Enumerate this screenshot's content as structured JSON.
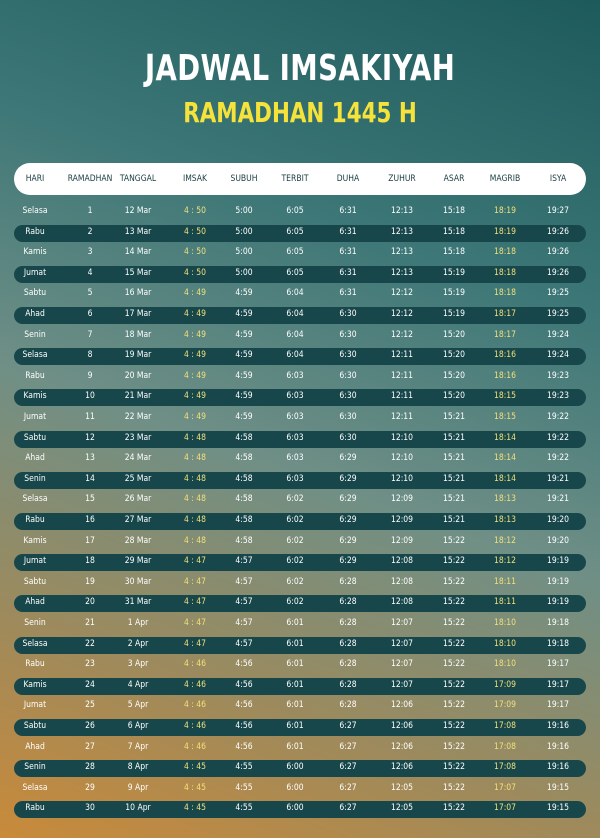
{
  "header": {
    "title": "JADWAL IMSAKIYAH",
    "subtitle": "RAMADHAN 1445 H"
  },
  "table": {
    "headers": [
      "HARI",
      "RAMADHAN",
      "TANGGAL",
      "IMSAK",
      "SUBUH",
      "TERBIT",
      "DUHA",
      "ZUHUR",
      "ASAR",
      "MAGRIB",
      "ISYA"
    ],
    "rows": [
      [
        "Selasa",
        "1",
        "12 Mar",
        "4 : 50",
        "5:00",
        "6:05",
        "6:31",
        "12:13",
        "15:18",
        "18:19",
        "19:27"
      ],
      [
        "Rabu",
        "2",
        "13 Mar",
        "4 : 50",
        "5:00",
        "6:05",
        "6:31",
        "12:13",
        "15:18",
        "18:19",
        "19:26"
      ],
      [
        "Kamis",
        "3",
        "14 Mar",
        "4 : 50",
        "5:00",
        "6:05",
        "6:31",
        "12:13",
        "15:18",
        "18:18",
        "19:26"
      ],
      [
        "Jumat",
        "4",
        "15 Mar",
        "4 : 50",
        "5:00",
        "6:05",
        "6:31",
        "12:13",
        "15:19",
        "18:18",
        "19:26"
      ],
      [
        "Sabtu",
        "5",
        "16 Mar",
        "4 : 49",
        "4:59",
        "6:04",
        "6:31",
        "12:12",
        "15:19",
        "18:18",
        "19:25"
      ],
      [
        "Ahad",
        "6",
        "17 Mar",
        "4 : 49",
        "4:59",
        "6:04",
        "6:30",
        "12:12",
        "15:19",
        "18:17",
        "19:25"
      ],
      [
        "Senin",
        "7",
        "18 Mar",
        "4 : 49",
        "4:59",
        "6:04",
        "6:30",
        "12:12",
        "15:20",
        "18:17",
        "19:24"
      ],
      [
        "Selasa",
        "8",
        "19 Mar",
        "4 : 49",
        "4:59",
        "6:04",
        "6:30",
        "12:11",
        "15:20",
        "18:16",
        "19:24"
      ],
      [
        "Rabu",
        "9",
        "20 Mar",
        "4 : 49",
        "4:59",
        "6:03",
        "6:30",
        "12:11",
        "15:20",
        "18:16",
        "19:23"
      ],
      [
        "Kamis",
        "10",
        "21 Mar",
        "4 : 49",
        "4:59",
        "6:03",
        "6:30",
        "12:11",
        "15:20",
        "18:15",
        "19:23"
      ],
      [
        "Jumat",
        "11",
        "22 Mar",
        "4 : 49",
        "4:59",
        "6:03",
        "6:30",
        "12:11",
        "15:21",
        "18:15",
        "19:22"
      ],
      [
        "Sabtu",
        "12",
        "23 Mar",
        "4 : 48",
        "4:58",
        "6:03",
        "6:30",
        "12:10",
        "15:21",
        "18:14",
        "19:22"
      ],
      [
        "Ahad",
        "13",
        "24 Mar",
        "4 : 48",
        "4:58",
        "6:03",
        "6:29",
        "12:10",
        "15:21",
        "18:14",
        "19:22"
      ],
      [
        "Senin",
        "14",
        "25 Mar",
        "4 : 48",
        "4:58",
        "6:03",
        "6:29",
        "12:10",
        "15:21",
        "18:14",
        "19:21"
      ],
      [
        "Selasa",
        "15",
        "26 Mar",
        "4 : 48",
        "4:58",
        "6:02",
        "6:29",
        "12:09",
        "15:21",
        "18:13",
        "19:21"
      ],
      [
        "Rabu",
        "16",
        "27 Mar",
        "4 : 48",
        "4:58",
        "6:02",
        "6:29",
        "12:09",
        "15:21",
        "18:13",
        "19:20"
      ],
      [
        "Kamis",
        "17",
        "28 Mar",
        "4 : 48",
        "4:58",
        "6:02",
        "6:29",
        "12:09",
        "15:22",
        "18:12",
        "19:20"
      ],
      [
        "Jumat",
        "18",
        "29 Mar",
        "4 : 47",
        "4:57",
        "6:02",
        "6:29",
        "12:08",
        "15:22",
        "18:12",
        "19:19"
      ],
      [
        "Sabtu",
        "19",
        "30 Mar",
        "4 : 47",
        "4:57",
        "6:02",
        "6:28",
        "12:08",
        "15:22",
        "18:11",
        "19:19"
      ],
      [
        "Ahad",
        "20",
        "31 Mar",
        "4 : 47",
        "4:57",
        "6:02",
        "6:28",
        "12:08",
        "15:22",
        "18:11",
        "19:19"
      ],
      [
        "Senin",
        "21",
        "1 Apr",
        "4 : 47",
        "4:57",
        "6:01",
        "6:28",
        "12:07",
        "15:22",
        "18:10",
        "19:18"
      ],
      [
        "Selasa",
        "22",
        "2 Apr",
        "4 : 47",
        "4:57",
        "6:01",
        "6:28",
        "12:07",
        "15:22",
        "18:10",
        "19:18"
      ],
      [
        "Rabu",
        "23",
        "3 Apr",
        "4 : 46",
        "4:56",
        "6:01",
        "6:28",
        "12:07",
        "15:22",
        "18:10",
        "19:17"
      ],
      [
        "Kamis",
        "24",
        "4 Apr",
        "4 : 46",
        "4:56",
        "6:01",
        "6:28",
        "12:07",
        "15:22",
        "17:09",
        "19:17"
      ],
      [
        "Jumat",
        "25",
        "5 Apr",
        "4 : 46",
        "4:56",
        "6:01",
        "6:28",
        "12:06",
        "15:22",
        "17:09",
        "19:17"
      ],
      [
        "Sabtu",
        "26",
        "6 Apr",
        "4 : 46",
        "4:56",
        "6:01",
        "6:27",
        "12:06",
        "15:22",
        "17:08",
        "19:16"
      ],
      [
        "Ahad",
        "27",
        "7 Apr",
        "4 : 46",
        "4:56",
        "6:01",
        "6:27",
        "12:06",
        "15:22",
        "17:08",
        "19:16"
      ],
      [
        "Senin",
        "28",
        "8 Apr",
        "4 : 45",
        "4:55",
        "6:00",
        "6:27",
        "12:06",
        "15:22",
        "17:08",
        "19:16"
      ],
      [
        "Selasa",
        "29",
        "9 Apr",
        "4 : 45",
        "4:55",
        "6:00",
        "6:27",
        "12:05",
        "15:22",
        "17:07",
        "19:15"
      ],
      [
        "Rabu",
        "30",
        "10 Apr",
        "4 : 45",
        "4:55",
        "6:00",
        "6:27",
        "12:05",
        "15:22",
        "17:07",
        "19:15"
      ]
    ]
  }
}
